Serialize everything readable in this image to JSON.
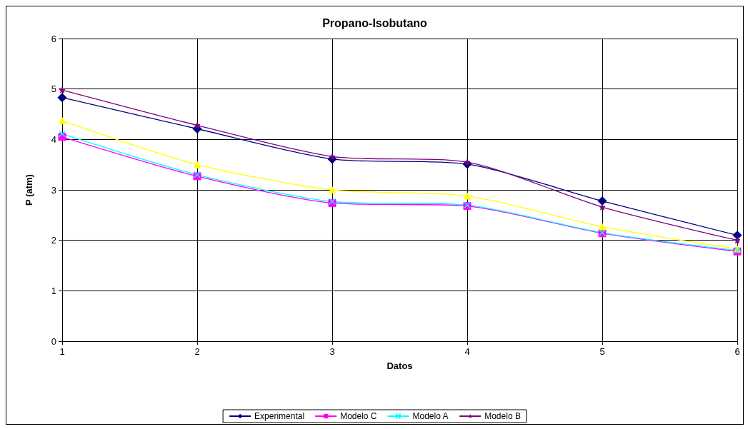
{
  "chart_data": {
    "type": "line",
    "title": "Propano-Isobutano",
    "xlabel": "Datos",
    "ylabel": "P (atm)",
    "x": [
      1,
      2,
      3,
      4,
      5,
      6
    ],
    "xlim": [
      1,
      6
    ],
    "xticks": [
      1,
      2,
      3,
      4,
      5,
      6
    ],
    "ylim": [
      0,
      6
    ],
    "yticks": [
      0,
      1,
      2,
      3,
      4,
      5,
      6
    ],
    "grid": true,
    "legend": "bottom",
    "series": [
      {
        "name": "Experimental",
        "color": "#000080",
        "marker": "diamond",
        "values": [
          4.83,
          4.21,
          3.61,
          3.51,
          2.78,
          2.1
        ]
      },
      {
        "name": "Modelo C",
        "color": "#ff00ff",
        "marker": "square",
        "values": [
          4.05,
          3.27,
          2.74,
          2.68,
          2.14,
          1.78
        ]
      },
      {
        "color": "#ffff00",
        "marker": "triangle",
        "values": [
          4.37,
          3.5,
          3.0,
          2.88,
          2.27,
          1.83
        ]
      },
      {
        "name": "Modelo A",
        "color": "#00ffff",
        "marker": "cross",
        "values": [
          4.11,
          3.3,
          2.77,
          2.7,
          2.15,
          1.8
        ]
      },
      {
        "name": "Modelo B",
        "color": "#800080",
        "marker": "star",
        "values": [
          4.98,
          4.28,
          3.66,
          3.55,
          2.66,
          2.0
        ]
      }
    ]
  }
}
